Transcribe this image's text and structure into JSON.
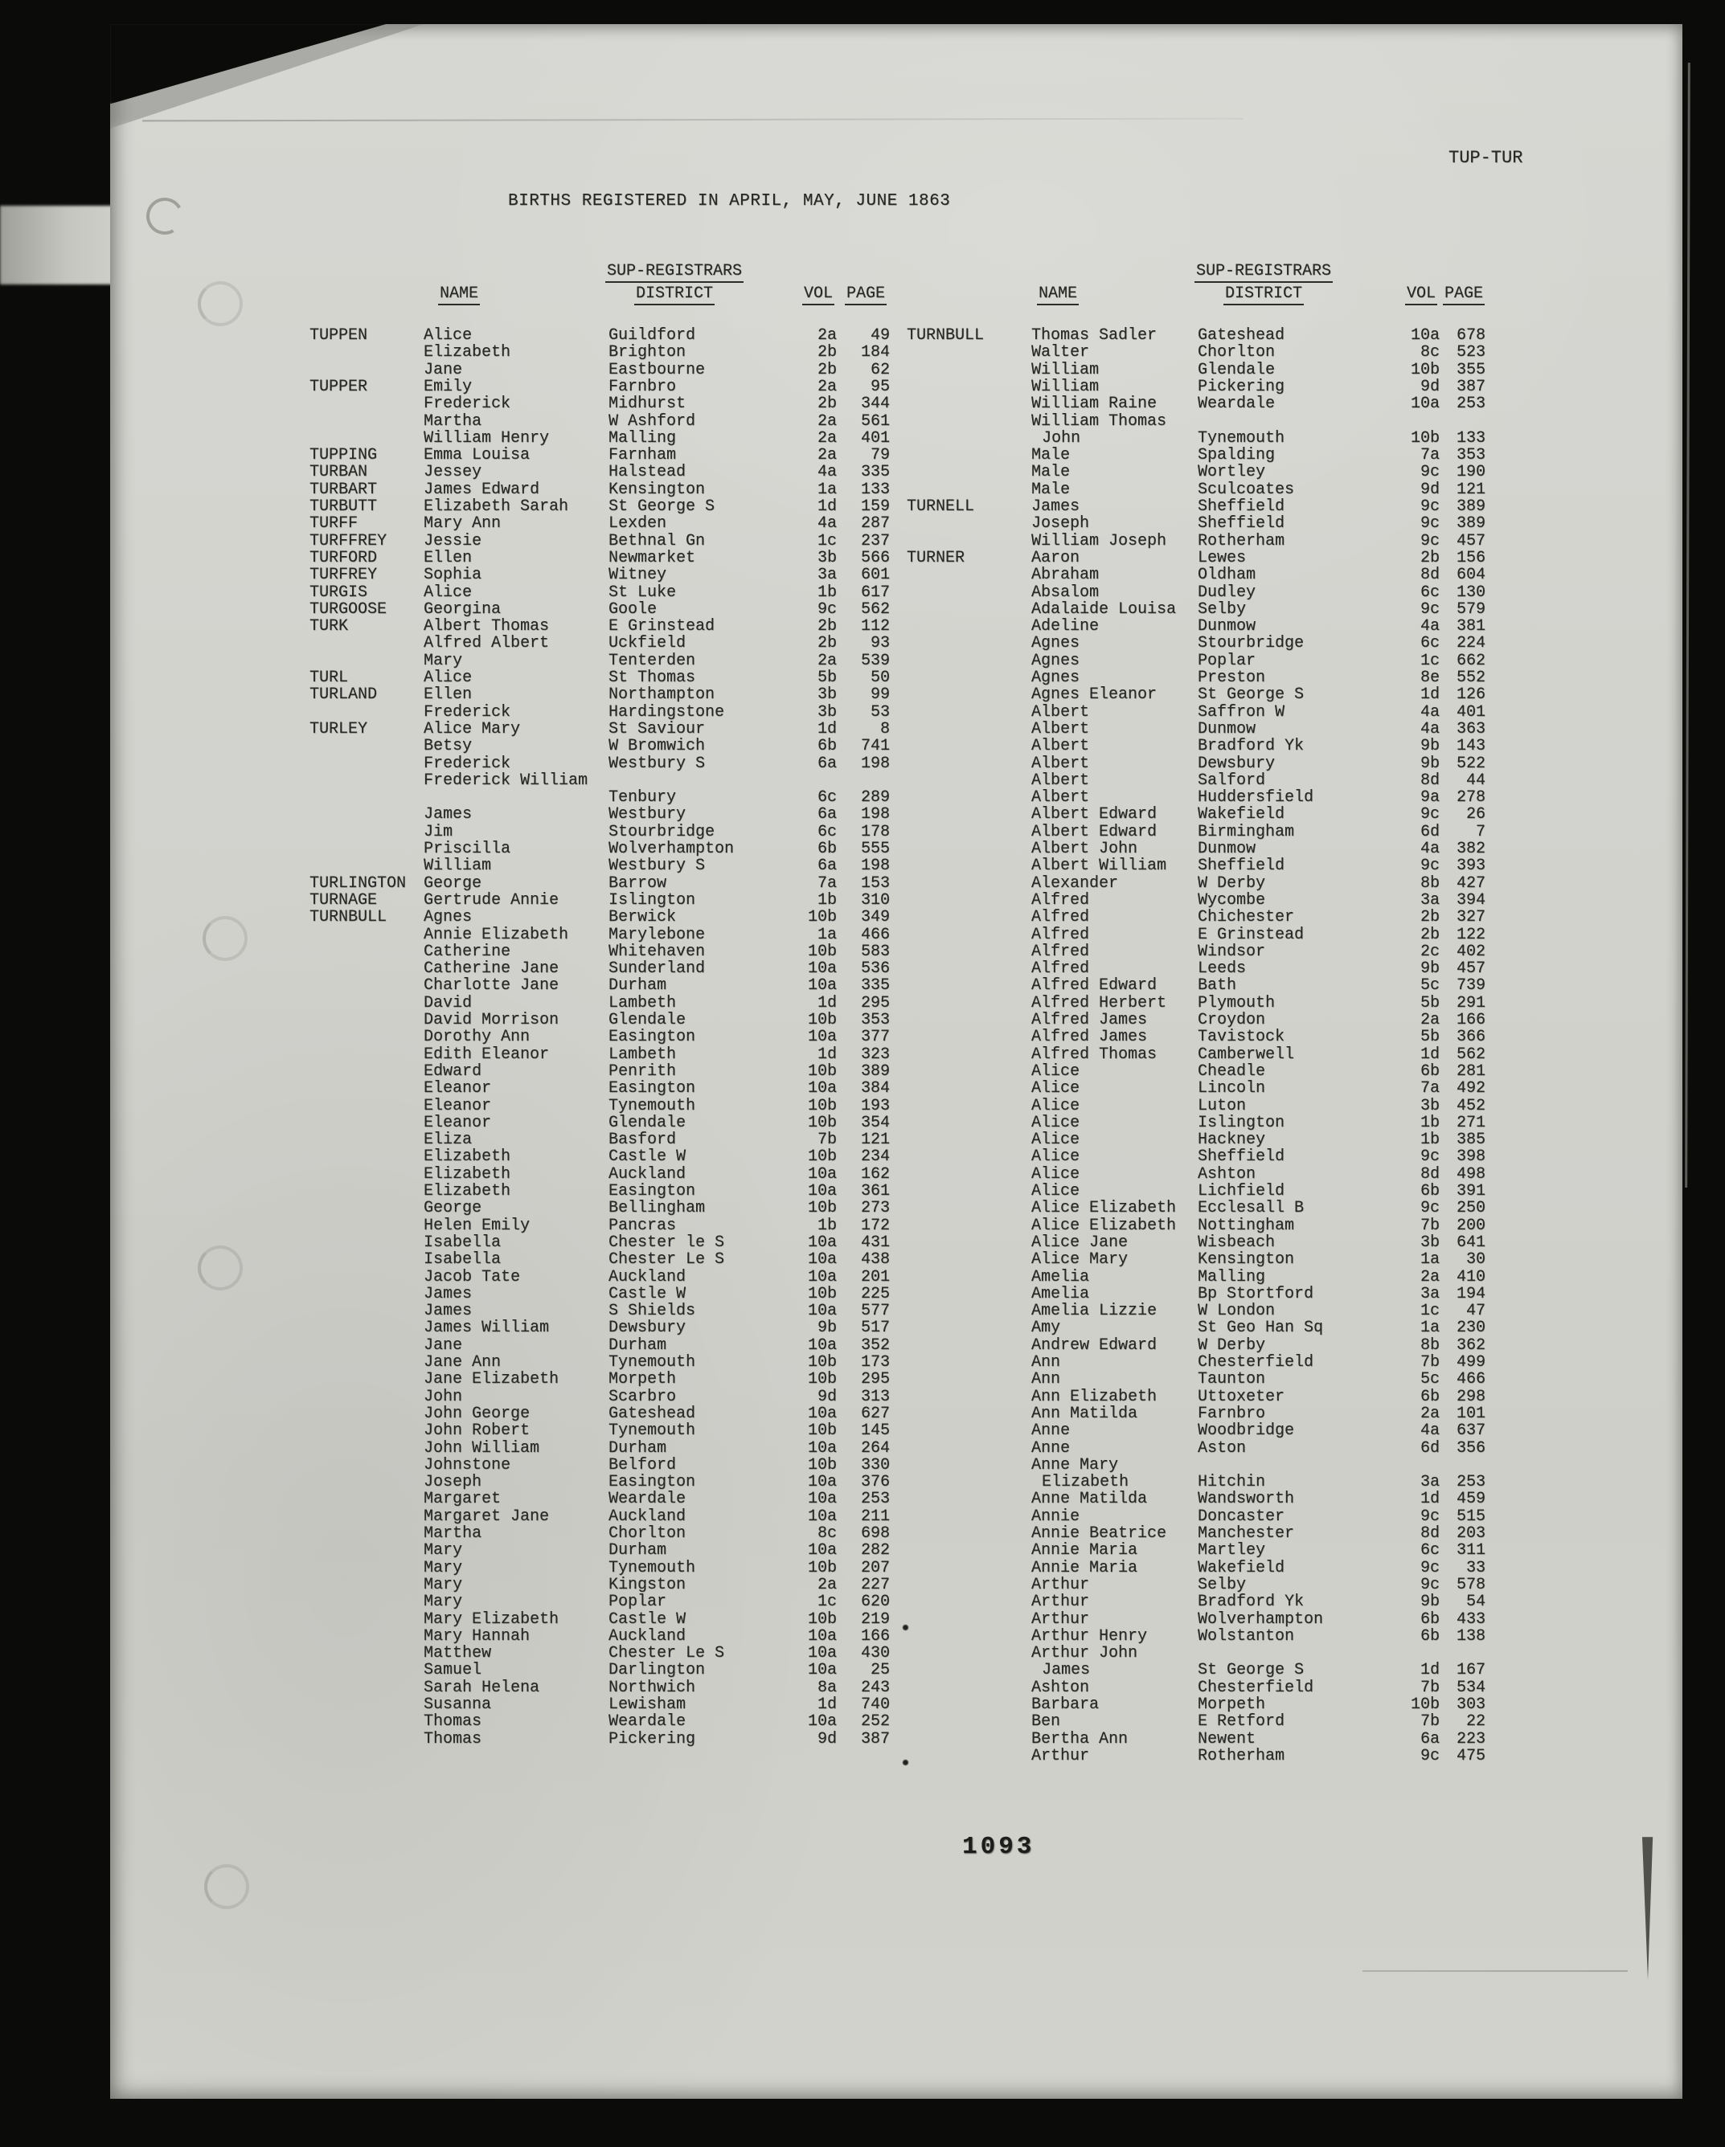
{
  "page": {
    "corner_label": "TUP-TUR",
    "title": "BIRTHS REGISTERED IN APRIL, MAY, JUNE 1863",
    "page_number": "1093",
    "headers": {
      "name": "NAME",
      "district_line1": "SUP-REGISTRARS",
      "district_line2": "DISTRICT",
      "vol": "VOL",
      "page": "PAGE"
    },
    "colors": {
      "paper": "#d2d2cd",
      "ink": "#282826",
      "background": "#0b0b0a"
    },
    "margin_dots": [
      "•",
      "•"
    ]
  },
  "left_entries": [
    {
      "s": "TUPPEN",
      "g": "Alice",
      "d": "Guildford",
      "v": "2a",
      "p": "49"
    },
    {
      "g": "Elizabeth",
      "d": "Brighton",
      "v": "2b",
      "p": "184"
    },
    {
      "g": "Jane",
      "d": "Eastbourne",
      "v": "2b",
      "p": "62"
    },
    {
      "s": "TUPPER",
      "g": "Emily",
      "d": "Farnbro",
      "v": "2a",
      "p": "95"
    },
    {
      "g": "Frederick",
      "d": "Midhurst",
      "v": "2b",
      "p": "344"
    },
    {
      "g": "Martha",
      "d": "W Ashford",
      "v": "2a",
      "p": "561"
    },
    {
      "g": "William Henry",
      "d": "Malling",
      "v": "2a",
      "p": "401"
    },
    {
      "s": "TUPPING",
      "g": "Emma Louisa",
      "d": "Farnham",
      "v": "2a",
      "p": "79"
    },
    {
      "s": "TURBAN",
      "g": "Jessey",
      "d": "Halstead",
      "v": "4a",
      "p": "335"
    },
    {
      "s": "TURBART",
      "g": "James Edward",
      "d": "Kensington",
      "v": "1a",
      "p": "133"
    },
    {
      "s": "TURBUTT",
      "g": "Elizabeth Sarah",
      "d": "St George S",
      "v": "1d",
      "p": "159"
    },
    {
      "s": "TURFF",
      "g": "Mary Ann",
      "d": "Lexden",
      "v": "4a",
      "p": "287"
    },
    {
      "s": "TURFFREY",
      "g": "Jessie",
      "d": "Bethnal Gn",
      "v": "1c",
      "p": "237"
    },
    {
      "s": "TURFORD",
      "g": "Ellen",
      "d": "Newmarket",
      "v": "3b",
      "p": "566"
    },
    {
      "s": "TURFREY",
      "g": "Sophia",
      "d": "Witney",
      "v": "3a",
      "p": "601"
    },
    {
      "s": "TURGIS",
      "g": "Alice",
      "d": "St Luke",
      "v": "1b",
      "p": "617"
    },
    {
      "s": "TURGOOSE",
      "g": "Georgina",
      "d": "Goole",
      "v": "9c",
      "p": "562"
    },
    {
      "s": "TURK",
      "g": "Albert Thomas",
      "d": "E Grinstead",
      "v": "2b",
      "p": "112"
    },
    {
      "g": "Alfred Albert",
      "d": "Uckfield",
      "v": "2b",
      "p": "93"
    },
    {
      "g": "Mary",
      "d": "Tenterden",
      "v": "2a",
      "p": "539"
    },
    {
      "s": "TURL",
      "g": "Alice",
      "d": "St Thomas",
      "v": "5b",
      "p": "50"
    },
    {
      "s": "TURLAND",
      "g": "Ellen",
      "d": "Northampton",
      "v": "3b",
      "p": "99"
    },
    {
      "g": "Frederick",
      "d": "Hardingstone",
      "v": "3b",
      "p": "53"
    },
    {
      "s": "TURLEY",
      "g": "Alice Mary",
      "d": "St Saviour",
      "v": "1d",
      "p": "8"
    },
    {
      "g": "Betsy",
      "d": "W Bromwich",
      "v": "6b",
      "p": "741"
    },
    {
      "g": "Frederick",
      "d": "Westbury S",
      "v": "6a",
      "p": "198"
    },
    {
      "g": "Frederick William"
    },
    {
      "d": "Tenbury",
      "v": "6c",
      "p": "289"
    },
    {
      "g": "James",
      "d": "Westbury",
      "v": "6a",
      "p": "198"
    },
    {
      "g": "Jim",
      "d": "Stourbridge",
      "v": "6c",
      "p": "178"
    },
    {
      "g": "Priscilla",
      "d": "Wolverhampton",
      "v": "6b",
      "p": "555"
    },
    {
      "g": "William",
      "d": "Westbury S",
      "v": "6a",
      "p": "198"
    },
    {
      "s": "TURLINGTON",
      "g": "George",
      "d": "Barrow",
      "v": "7a",
      "p": "153"
    },
    {
      "s": "TURNAGE",
      "g": "Gertrude Annie",
      "d": "Islington",
      "v": "1b",
      "p": "310"
    },
    {
      "s": "TURNBULL",
      "g": "Agnes",
      "d": "Berwick",
      "v": "10b",
      "p": "349"
    },
    {
      "g": "Annie Elizabeth",
      "d": "Marylebone",
      "v": "1a",
      "p": "466"
    },
    {
      "g": "Catherine",
      "d": "Whitehaven",
      "v": "10b",
      "p": "583"
    },
    {
      "g": "Catherine Jane",
      "d": "Sunderland",
      "v": "10a",
      "p": "536"
    },
    {
      "g": "Charlotte Jane",
      "d": "Durham",
      "v": "10a",
      "p": "335"
    },
    {
      "g": "David",
      "d": "Lambeth",
      "v": "1d",
      "p": "295"
    },
    {
      "g": "David Morrison",
      "d": "Glendale",
      "v": "10b",
      "p": "353"
    },
    {
      "g": "Dorothy Ann",
      "d": "Easington",
      "v": "10a",
      "p": "377"
    },
    {
      "g": "Edith Eleanor",
      "d": "Lambeth",
      "v": "1d",
      "p": "323"
    },
    {
      "g": "Edward",
      "d": "Penrith",
      "v": "10b",
      "p": "389"
    },
    {
      "g": "Eleanor",
      "d": "Easington",
      "v": "10a",
      "p": "384"
    },
    {
      "g": "Eleanor",
      "d": "Tynemouth",
      "v": "10b",
      "p": "193"
    },
    {
      "g": "Eleanor",
      "d": "Glendale",
      "v": "10b",
      "p": "354"
    },
    {
      "g": "Eliza",
      "d": "Basford",
      "v": "7b",
      "p": "121"
    },
    {
      "g": "Elizabeth",
      "d": "Castle W",
      "v": "10b",
      "p": "234"
    },
    {
      "g": "Elizabeth",
      "d": "Auckland",
      "v": "10a",
      "p": "162"
    },
    {
      "g": "Elizabeth",
      "d": "Easington",
      "v": "10a",
      "p": "361"
    },
    {
      "g": "George",
      "d": "Bellingham",
      "v": "10b",
      "p": "273"
    },
    {
      "g": "Helen Emily",
      "d": "Pancras",
      "v": "1b",
      "p": "172"
    },
    {
      "g": "Isabella",
      "d": "Chester le S",
      "v": "10a",
      "p": "431"
    },
    {
      "g": "Isabella",
      "d": "Chester Le S",
      "v": "10a",
      "p": "438"
    },
    {
      "g": "Jacob Tate",
      "d": "Auckland",
      "v": "10a",
      "p": "201"
    },
    {
      "g": "James",
      "d": "Castle W",
      "v": "10b",
      "p": "225"
    },
    {
      "g": "James",
      "d": "S Shields",
      "v": "10a",
      "p": "577"
    },
    {
      "g": "James William",
      "d": "Dewsbury",
      "v": "9b",
      "p": "517"
    },
    {
      "g": "Jane",
      "d": "Durham",
      "v": "10a",
      "p": "352"
    },
    {
      "g": "Jane Ann",
      "d": "Tynemouth",
      "v": "10b",
      "p": "173"
    },
    {
      "g": "Jane Elizabeth",
      "d": "Morpeth",
      "v": "10b",
      "p": "295"
    },
    {
      "g": "John",
      "d": "Scarbro",
      "v": "9d",
      "p": "313"
    },
    {
      "g": "John George",
      "d": "Gateshead",
      "v": "10a",
      "p": "627"
    },
    {
      "g": "John Robert",
      "d": "Tynemouth",
      "v": "10b",
      "p": "145"
    },
    {
      "g": "John William",
      "d": "Durham",
      "v": "10a",
      "p": "264"
    },
    {
      "g": "Johnstone",
      "d": "Belford",
      "v": "10b",
      "p": "330"
    },
    {
      "g": "Joseph",
      "d": "Easington",
      "v": "10a",
      "p": "376"
    },
    {
      "g": "Margaret",
      "d": "Weardale",
      "v": "10a",
      "p": "253"
    },
    {
      "g": "Margaret Jane",
      "d": "Auckland",
      "v": "10a",
      "p": "211"
    },
    {
      "g": "Martha",
      "d": "Chorlton",
      "v": "8c",
      "p": "698"
    },
    {
      "g": "Mary",
      "d": "Durham",
      "v": "10a",
      "p": "282"
    },
    {
      "g": "Mary",
      "d": "Tynemouth",
      "v": "10b",
      "p": "207"
    },
    {
      "g": "Mary",
      "d": "Kingston",
      "v": "2a",
      "p": "227"
    },
    {
      "g": "Mary",
      "d": "Poplar",
      "v": "1c",
      "p": "620"
    },
    {
      "g": "Mary Elizabeth",
      "d": "Castle W",
      "v": "10b",
      "p": "219"
    },
    {
      "g": "Mary Hannah",
      "d": "Auckland",
      "v": "10a",
      "p": "166"
    },
    {
      "g": "Matthew",
      "d": "Chester Le S",
      "v": "10a",
      "p": "430"
    },
    {
      "g": "Samuel",
      "d": "Darlington",
      "v": "10a",
      "p": "25"
    },
    {
      "g": "Sarah Helena",
      "d": "Northwich",
      "v": "8a",
      "p": "243"
    },
    {
      "g": "Susanna",
      "d": "Lewisham",
      "v": "1d",
      "p": "740"
    },
    {
      "g": "Thomas",
      "d": "Weardale",
      "v": "10a",
      "p": "252"
    },
    {
      "g": "Thomas",
      "d": "Pickering",
      "v": "9d",
      "p": "387"
    }
  ],
  "right_entries": [
    {
      "s": "TURNBULL",
      "g": "Thomas Sadler",
      "d": "Gateshead",
      "v": "10a",
      "p": "678"
    },
    {
      "g": "Walter",
      "d": "Chorlton",
      "v": "8c",
      "p": "523"
    },
    {
      "g": "William",
      "d": "Glendale",
      "v": "10b",
      "p": "355"
    },
    {
      "g": "William",
      "d": "Pickering",
      "v": "9d",
      "p": "387"
    },
    {
      "g": "William Raine",
      "d": "Weardale",
      "v": "10a",
      "p": "253"
    },
    {
      "g": "William Thomas"
    },
    {
      "g": "John",
      "i": true,
      "d": "Tynemouth",
      "v": "10b",
      "p": "133"
    },
    {
      "g": "Male",
      "d": "Spalding",
      "v": "7a",
      "p": "353"
    },
    {
      "g": "Male",
      "d": "Wortley",
      "v": "9c",
      "p": "190"
    },
    {
      "g": "Male",
      "d": "Sculcoates",
      "v": "9d",
      "p": "121"
    },
    {
      "s": "TURNELL",
      "g": "James",
      "d": "Sheffield",
      "v": "9c",
      "p": "389"
    },
    {
      "g": "Joseph",
      "d": "Sheffield",
      "v": "9c",
      "p": "389"
    },
    {
      "g": "William Joseph",
      "d": "Rotherham",
      "v": "9c",
      "p": "457"
    },
    {
      "s": "TURNER",
      "g": "Aaron",
      "d": "Lewes",
      "v": "2b",
      "p": "156"
    },
    {
      "g": "Abraham",
      "d": "Oldham",
      "v": "8d",
      "p": "604"
    },
    {
      "g": "Absalom",
      "d": "Dudley",
      "v": "6c",
      "p": "130"
    },
    {
      "g": "Adalaide Louisa",
      "d": "Selby",
      "v": "9c",
      "p": "579"
    },
    {
      "g": "Adeline",
      "d": "Dunmow",
      "v": "4a",
      "p": "381"
    },
    {
      "g": "Agnes",
      "d": "Stourbridge",
      "v": "6c",
      "p": "224"
    },
    {
      "g": "Agnes",
      "d": "Poplar",
      "v": "1c",
      "p": "662"
    },
    {
      "g": "Agnes",
      "d": "Preston",
      "v": "8e",
      "p": "552"
    },
    {
      "g": "Agnes Eleanor",
      "d": "St George S",
      "v": "1d",
      "p": "126"
    },
    {
      "g": "Albert",
      "d": "Saffron W",
      "v": "4a",
      "p": "401"
    },
    {
      "g": "Albert",
      "d": "Dunmow",
      "v": "4a",
      "p": "363"
    },
    {
      "g": "Albert",
      "d": "Bradford Yk",
      "v": "9b",
      "p": "143"
    },
    {
      "g": "Albert",
      "d": "Dewsbury",
      "v": "9b",
      "p": "522"
    },
    {
      "g": "Albert",
      "d": "Salford",
      "v": "8d",
      "p": "44"
    },
    {
      "g": "Albert",
      "d": "Huddersfield",
      "v": "9a",
      "p": "278"
    },
    {
      "g": "Albert Edward",
      "d": "Wakefield",
      "v": "9c",
      "p": "26"
    },
    {
      "g": "Albert Edward",
      "d": "Birmingham",
      "v": "6d",
      "p": "7"
    },
    {
      "g": "Albert John",
      "d": "Dunmow",
      "v": "4a",
      "p": "382"
    },
    {
      "g": "Albert William",
      "d": "Sheffield",
      "v": "9c",
      "p": "393"
    },
    {
      "g": "Alexander",
      "d": "W Derby",
      "v": "8b",
      "p": "427"
    },
    {
      "g": "Alfred",
      "d": "Wycombe",
      "v": "3a",
      "p": "394"
    },
    {
      "g": "Alfred",
      "d": "Chichester",
      "v": "2b",
      "p": "327"
    },
    {
      "g": "Alfred",
      "d": "E Grinstead",
      "v": "2b",
      "p": "122"
    },
    {
      "g": "Alfred",
      "d": "Windsor",
      "v": "2c",
      "p": "402"
    },
    {
      "g": "Alfred",
      "d": "Leeds",
      "v": "9b",
      "p": "457"
    },
    {
      "g": "Alfred Edward",
      "d": "Bath",
      "v": "5c",
      "p": "739"
    },
    {
      "g": "Alfred Herbert",
      "d": "Plymouth",
      "v": "5b",
      "p": "291"
    },
    {
      "g": "Alfred James",
      "d": "Croydon",
      "v": "2a",
      "p": "166"
    },
    {
      "g": "Alfred James",
      "d": "Tavistock",
      "v": "5b",
      "p": "366"
    },
    {
      "g": "Alfred Thomas",
      "d": "Camberwell",
      "v": "1d",
      "p": "562"
    },
    {
      "g": "Alice",
      "d": "Cheadle",
      "v": "6b",
      "p": "281"
    },
    {
      "g": "Alice",
      "d": "Lincoln",
      "v": "7a",
      "p": "492"
    },
    {
      "g": "Alice",
      "d": "Luton",
      "v": "3b",
      "p": "452"
    },
    {
      "g": "Alice",
      "d": "Islington",
      "v": "1b",
      "p": "271"
    },
    {
      "g": "Alice",
      "d": "Hackney",
      "v": "1b",
      "p": "385"
    },
    {
      "g": "Alice",
      "d": "Sheffield",
      "v": "9c",
      "p": "398"
    },
    {
      "g": "Alice",
      "d": "Ashton",
      "v": "8d",
      "p": "498"
    },
    {
      "g": "Alice",
      "d": "Lichfield",
      "v": "6b",
      "p": "391"
    },
    {
      "g": "Alice Elizabeth",
      "d": "Ecclesall B",
      "v": "9c",
      "p": "250"
    },
    {
      "g": "Alice Elizabeth",
      "d": "Nottingham",
      "v": "7b",
      "p": "200"
    },
    {
      "g": "Alice Jane",
      "d": "Wisbeach",
      "v": "3b",
      "p": "641"
    },
    {
      "g": "Alice Mary",
      "d": "Kensington",
      "v": "1a",
      "p": "30"
    },
    {
      "g": "Amelia",
      "d": "Malling",
      "v": "2a",
      "p": "410"
    },
    {
      "g": "Amelia",
      "d": "Bp Stortford",
      "v": "3a",
      "p": "194"
    },
    {
      "g": "Amelia Lizzie",
      "d": "W London",
      "v": "1c",
      "p": "47"
    },
    {
      "g": "Amy",
      "d": "St Geo Han Sq",
      "v": "1a",
      "p": "230"
    },
    {
      "g": "Andrew Edward",
      "d": "W Derby",
      "v": "8b",
      "p": "362"
    },
    {
      "g": "Ann",
      "d": "Chesterfield",
      "v": "7b",
      "p": "499"
    },
    {
      "g": "Ann",
      "d": "Taunton",
      "v": "5c",
      "p": "466"
    },
    {
      "g": "Ann Elizabeth",
      "d": "Uttoxeter",
      "v": "6b",
      "p": "298"
    },
    {
      "g": "Ann Matilda",
      "d": "Farnbro",
      "v": "2a",
      "p": "101"
    },
    {
      "g": "Anne",
      "d": "Woodbridge",
      "v": "4a",
      "p": "637"
    },
    {
      "g": "Anne",
      "d": "Aston",
      "v": "6d",
      "p": "356"
    },
    {
      "g": "Anne Mary"
    },
    {
      "g": "Elizabeth",
      "i": true,
      "d": "Hitchin",
      "v": "3a",
      "p": "253"
    },
    {
      "g": "Anne Matilda",
      "d": "Wandsworth",
      "v": "1d",
      "p": "459"
    },
    {
      "g": "Annie",
      "d": "Doncaster",
      "v": "9c",
      "p": "515"
    },
    {
      "g": "Annie Beatrice",
      "d": "Manchester",
      "v": "8d",
      "p": "203"
    },
    {
      "g": "Annie Maria",
      "d": "Martley",
      "v": "6c",
      "p": "311"
    },
    {
      "g": "Annie Maria",
      "d": "Wakefield",
      "v": "9c",
      "p": "33"
    },
    {
      "g": "Arthur",
      "d": "Selby",
      "v": "9c",
      "p": "578"
    },
    {
      "g": "Arthur",
      "d": "Bradford Yk",
      "v": "9b",
      "p": "54"
    },
    {
      "g": "Arthur",
      "d": "Wolverhampton",
      "v": "6b",
      "p": "433"
    },
    {
      "g": "Arthur Henry",
      "d": "Wolstanton",
      "v": "6b",
      "p": "138"
    },
    {
      "g": "Arthur John"
    },
    {
      "g": "James",
      "i": true,
      "d": "St George S",
      "v": "1d",
      "p": "167"
    },
    {
      "g": "Ashton",
      "d": "Chesterfield",
      "v": "7b",
      "p": "534"
    },
    {
      "g": "Barbara",
      "d": "Morpeth",
      "v": "10b",
      "p": "303"
    },
    {
      "g": "Ben",
      "d": "E Retford",
      "v": "7b",
      "p": "22"
    },
    {
      "g": "Bertha Ann",
      "d": "Newent",
      "v": "6a",
      "p": "223"
    },
    {
      "g": "Arthur",
      "d": "Rotherham",
      "v": "9c",
      "p": "475"
    }
  ]
}
